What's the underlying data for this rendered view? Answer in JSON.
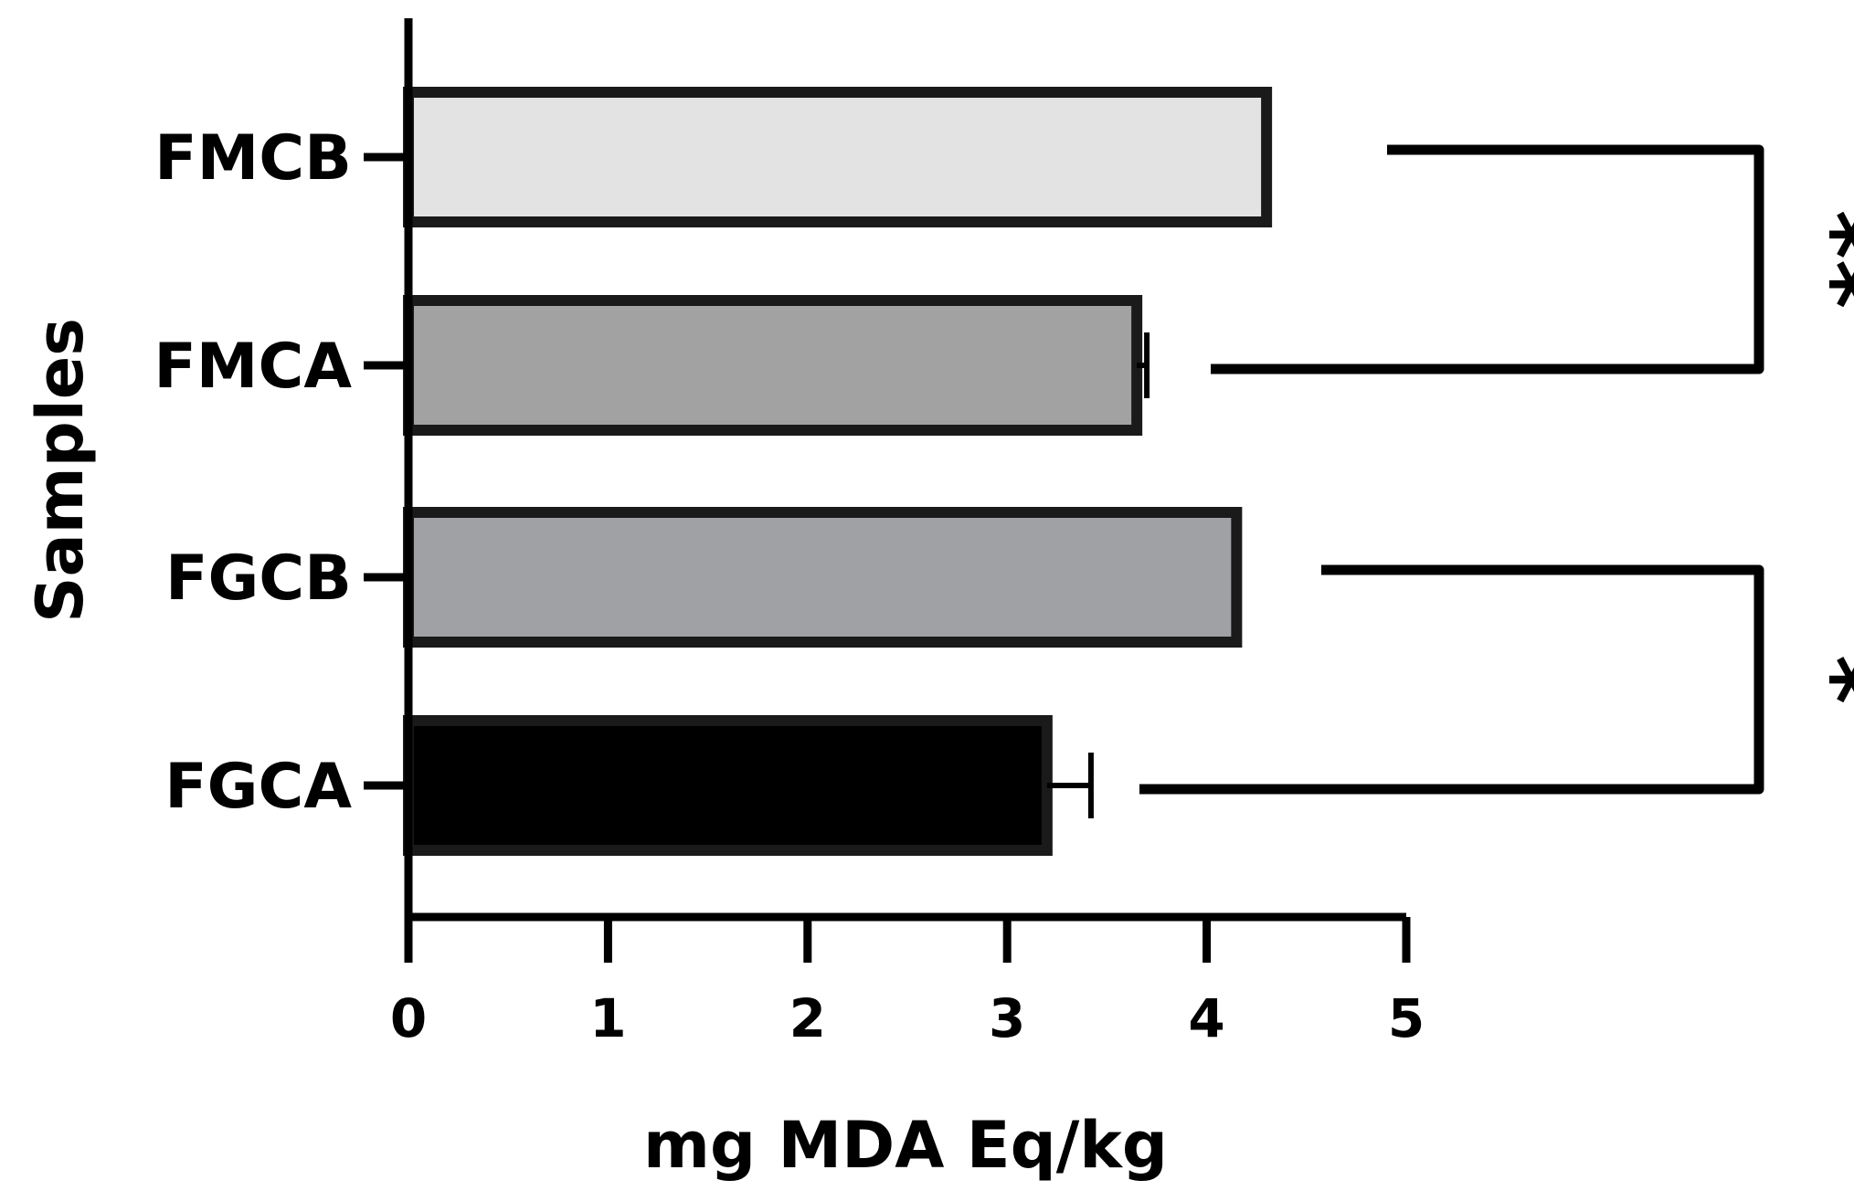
{
  "chart_data": {
    "type": "bar",
    "orientation": "horizontal",
    "categories": [
      "FMCB",
      "FMCA",
      "FGCB",
      "FGCA"
    ],
    "values": [
      4.3,
      3.65,
      4.15,
      3.2
    ],
    "error": [
      0,
      0.05,
      0,
      0.22
    ],
    "bar_colors": [
      "#e3e3e3",
      "#a2a2a2",
      "#a0a1a4",
      "#000000"
    ],
    "xlabel": "mg MDA Eq/kg",
    "ylabel": "Samples",
    "xlim": [
      0,
      5
    ],
    "xticks": [
      "0",
      "1",
      "2",
      "3",
      "4",
      "5"
    ],
    "grid": false,
    "legend": "none",
    "significance": [
      {
        "from": "FMCB",
        "to": "FMCA",
        "label": "**"
      },
      {
        "from": "FGCB",
        "to": "FGCA",
        "label": "*"
      }
    ]
  }
}
